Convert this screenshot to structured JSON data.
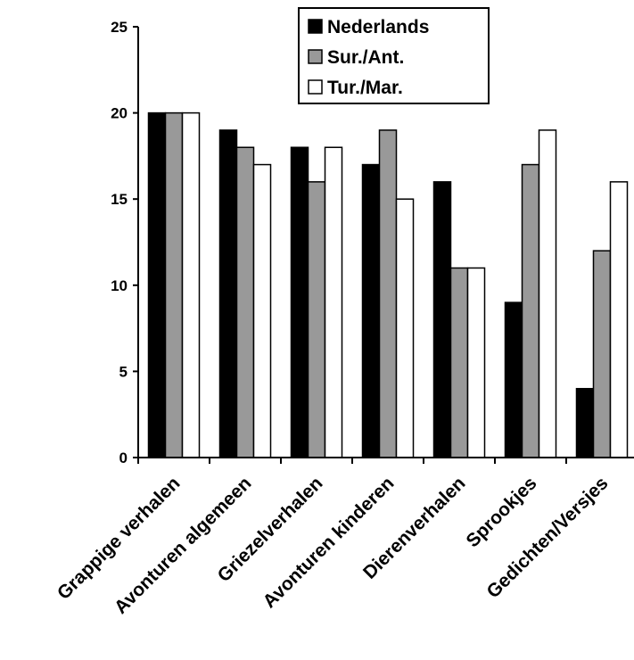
{
  "chart_data": {
    "type": "bar",
    "title": "",
    "xlabel": "",
    "ylabel": "",
    "ylim": [
      0,
      25
    ],
    "yticks": [
      0,
      5,
      10,
      15,
      20,
      25
    ],
    "grid": false,
    "legend_position": "top-right",
    "categories": [
      "Grappige verhalen",
      "Avonturen algemeen",
      "Griezelverhalen",
      "Avonturen kinderen",
      "Dierenverhalen",
      "Sprookjes",
      "Gedichten/Versjes"
    ],
    "series": [
      {
        "name": "Nederlands",
        "color": "#000000",
        "values": [
          20,
          19,
          18,
          17,
          16,
          9,
          4
        ]
      },
      {
        "name": "Sur./Ant.",
        "color": "#999999",
        "values": [
          20,
          18,
          16,
          19,
          11,
          17,
          12
        ]
      },
      {
        "name": "Tur./Mar.",
        "color": "#ffffff",
        "values": [
          20,
          17,
          18,
          15,
          11,
          19,
          16
        ]
      }
    ]
  }
}
